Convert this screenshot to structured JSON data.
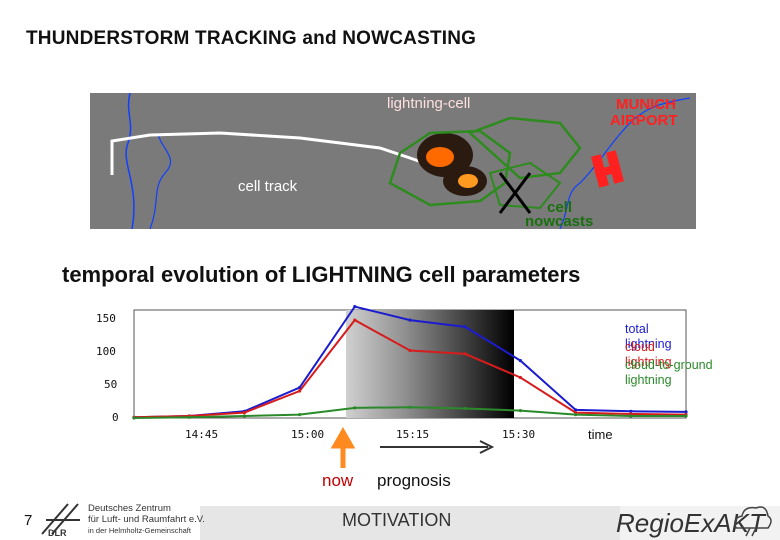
{
  "slide": {
    "title": "THUNDERSTORM TRACKING and NOWCASTING",
    "subtitle": "temporal evolution of LIGHTNING cell parameters",
    "page_number": "7",
    "section": "MOTIVATION"
  },
  "map": {
    "label_cell": "lightning-cell",
    "label_airport_line1": "MUNICH",
    "label_airport_line2": "AIRPORT",
    "label_track": "cell track",
    "label_nowcast_line1": "cell",
    "label_nowcast_line2": "nowcasts",
    "colors": {
      "water": "#1040ff",
      "track": "#ffffff",
      "nowcast": "#2e8b1e",
      "airport": "#ff2020",
      "cell": "#ff6a00"
    }
  },
  "chart_data": {
    "type": "line",
    "x": [
      0,
      1,
      2,
      3,
      4,
      5,
      6,
      7,
      8,
      9,
      10
    ],
    "xtick_labels": [
      "14:45",
      "15:00",
      "15:15",
      "15:30"
    ],
    "xtick_positions": [
      1.5,
      4,
      6.5,
      9
    ],
    "xlabel": "time",
    "ylim": [
      0,
      160
    ],
    "yticks": [
      0,
      50,
      100,
      150
    ],
    "series": [
      {
        "name": "total lightning",
        "color": "#1c1ccf",
        "values": [
          1,
          3,
          10,
          45,
          165,
          145,
          135,
          85,
          12,
          10,
          9
        ]
      },
      {
        "name": "cloud lightning",
        "color": "#d61c1c",
        "values": [
          1,
          3,
          8,
          40,
          145,
          100,
          95,
          60,
          8,
          6,
          5
        ]
      },
      {
        "name": "cloud-to-ground lightning",
        "color": "#2a8a2a",
        "values": [
          0,
          1,
          3,
          5,
          15,
          16,
          14,
          11,
          5,
          3,
          3
        ]
      }
    ],
    "now_marker": "now",
    "prognosis_label": "prognosis"
  },
  "footer": {
    "dlr_line1": "Deutsches Zentrum",
    "dlr_line2": "für Luft- und Raumfahrt e.V.",
    "dlr_line3": "in der Helmholtz-Gemeinschaft",
    "dlr_logo": "DLR",
    "regio_logo": "RegioExAKT"
  }
}
